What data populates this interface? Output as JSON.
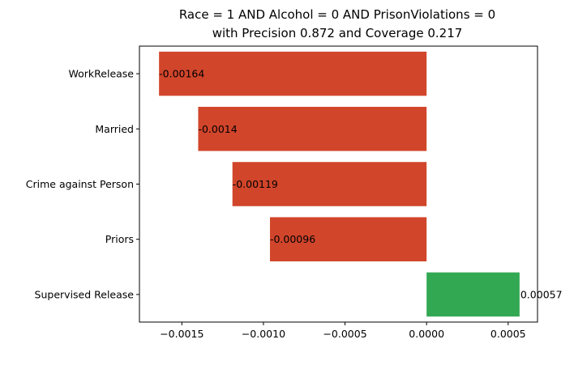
{
  "chart_data": {
    "type": "bar",
    "orientation": "horizontal",
    "title": "Race = 1 AND Alcohol = 0 AND PrisonViolations = 0",
    "subtitle": "with Precision 0.872 and Coverage 0.217",
    "categories": [
      "WorkRelease",
      "Married",
      "Crime against Person",
      "Priors",
      "Supervised Release"
    ],
    "values": [
      -0.00164,
      -0.0014,
      -0.00119,
      -0.00096,
      0.00057
    ],
    "data_labels": [
      "-0.00164",
      "-0.0014",
      "-0.00119",
      "-0.00096",
      "0.00057"
    ],
    "xlabel": "",
    "ylabel": "",
    "xlim": [
      -0.00176,
      0.00068
    ],
    "xticks": [
      -0.0015,
      -0.001,
      -0.0005,
      0.0,
      0.0005
    ],
    "xtick_labels": [
      "−0.0015",
      "−0.0010",
      "−0.0005",
      "0.0000",
      "0.0005"
    ],
    "grid": false,
    "colors": {
      "negative": "#d1452b",
      "positive": "#33a853"
    }
  }
}
